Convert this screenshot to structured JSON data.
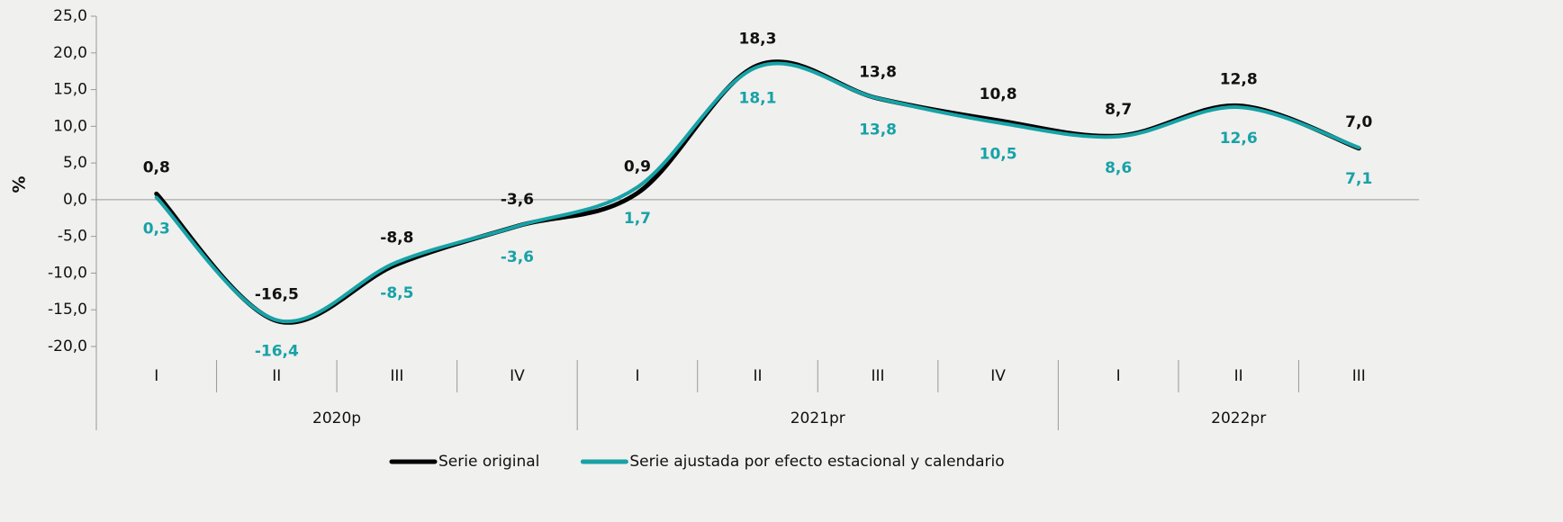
{
  "chart_data": {
    "type": "line",
    "y_label": "%",
    "groups": [
      {
        "label": "2020p",
        "categories": [
          "I",
          "II",
          "III",
          "IV"
        ]
      },
      {
        "label": "2021pr",
        "categories": [
          "I",
          "II",
          "III",
          "IV"
        ]
      },
      {
        "label": "2022pr",
        "categories": [
          "I",
          "II",
          "III"
        ]
      }
    ],
    "series": [
      {
        "name": "Serie original",
        "color": "#000000",
        "values": [
          0.8,
          -16.5,
          -8.8,
          -3.6,
          0.9,
          18.3,
          13.8,
          10.8,
          8.7,
          12.8,
          7.0
        ],
        "value_labels": [
          "0,8",
          "-16,5",
          "-8,8",
          "-3,6",
          "0,9",
          "18,3",
          "13,8",
          "10,8",
          "8,7",
          "12,8",
          "7,0"
        ]
      },
      {
        "name": "Serie ajustada por efecto estacional y calendario",
        "color": "#17a2a6",
        "values": [
          0.3,
          -16.4,
          -8.5,
          -3.6,
          1.7,
          18.1,
          13.8,
          10.5,
          8.6,
          12.6,
          7.1
        ],
        "value_labels": [
          "0,3",
          "-16,4",
          "-8,5",
          "-3,6",
          "1,7",
          "18,1",
          "13,8",
          "10,5",
          "8,6",
          "12,6",
          "7,1"
        ]
      }
    ],
    "ylim": [
      -20,
      25
    ],
    "yticks": [
      {
        "value": -20,
        "label": "-20,0"
      },
      {
        "value": -15,
        "label": "-15,0"
      },
      {
        "value": -10,
        "label": "-10,0"
      },
      {
        "value": -5,
        "label": "-5,0"
      },
      {
        "value": 0,
        "label": "0,0"
      },
      {
        "value": 5,
        "label": "5,0"
      },
      {
        "value": 10,
        "label": "10,0"
      },
      {
        "value": 15,
        "label": "15,0"
      },
      {
        "value": 20,
        "label": "20,0"
      },
      {
        "value": 25,
        "label": "25,0"
      }
    ],
    "grid": false,
    "legend": "bottom"
  }
}
